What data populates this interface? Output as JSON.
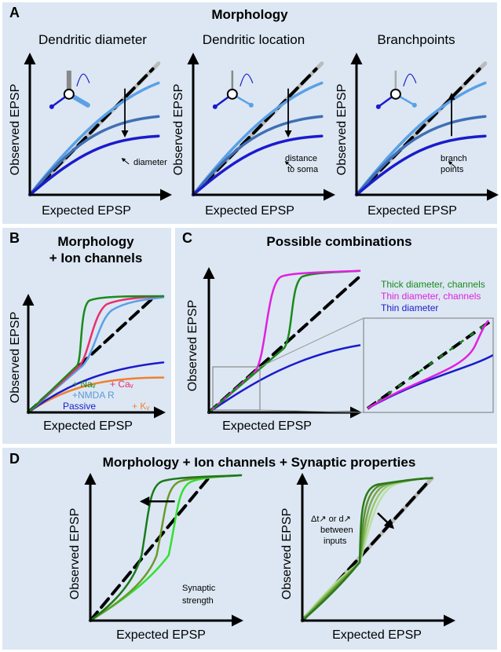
{
  "panels": {
    "A": {
      "letter": "A",
      "title": "Morphology",
      "subplots": [
        {
          "title": "Dendritic diameter",
          "note": [
            "diameter"
          ]
        },
        {
          "title": "Dendritic location",
          "note": [
            "distance",
            "to soma"
          ]
        },
        {
          "title": "Branchpoints",
          "note": [
            "branch",
            "points"
          ]
        }
      ]
    },
    "B": {
      "letter": "B",
      "title": [
        "Morphology",
        "+ Ion channels"
      ],
      "legend": [
        "+ Naᵥ",
        "+ Caᵥ",
        "+NMDA R",
        "Passive",
        "+ Kᵥ"
      ]
    },
    "C": {
      "letter": "C",
      "title": "Possible combinations",
      "legend": [
        "Thick diameter, channels",
        "Thin diameter, channels",
        "Thin diameter"
      ]
    },
    "D": {
      "letter": "D",
      "title": "Morphology + Ion channels + Synaptic properties",
      "notes": [
        [
          "Synaptic",
          "strength"
        ],
        [
          "Δt↗ or d↗",
          "between",
          "inputs"
        ]
      ]
    }
  },
  "axis_labels": {
    "y": "Observed EPSP",
    "x": "Expected EPSP"
  }
}
